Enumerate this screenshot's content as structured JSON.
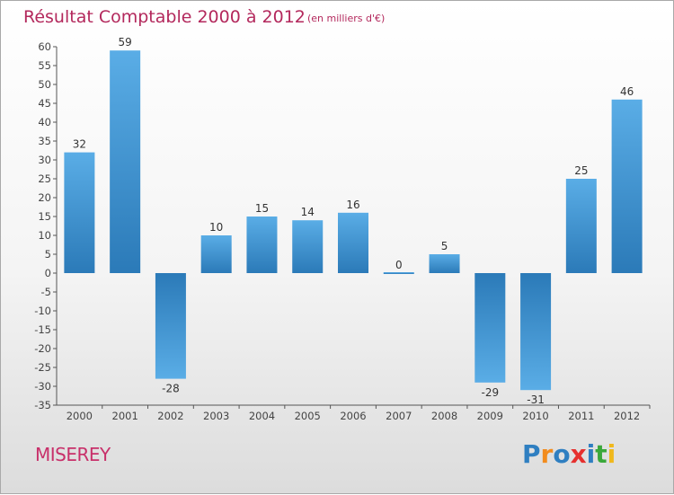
{
  "chart_data": {
    "type": "bar",
    "title": "Résultat Comptable 2000 à 2012",
    "subtitle": "(en milliers d'€)",
    "categories": [
      "2000",
      "2001",
      "2002",
      "2003",
      "2004",
      "2005",
      "2006",
      "2007",
      "2008",
      "2009",
      "2010",
      "2011",
      "2012"
    ],
    "values": [
      32,
      59,
      -28,
      10,
      15,
      14,
      16,
      0,
      5,
      -29,
      -31,
      25,
      46
    ],
    "ylim": [
      -35,
      60
    ],
    "yticks": [
      60,
      55,
      50,
      45,
      40,
      35,
      30,
      25,
      20,
      15,
      10,
      5,
      0,
      -5,
      -10,
      -15,
      -20,
      -25,
      -30,
      -35
    ],
    "grid": false,
    "xlabel": "",
    "ylabel": "",
    "colors": {
      "bar_light": "#5aade6",
      "bar_dark": "#2b7ab8",
      "title": "#b3285c"
    }
  },
  "commune": "MISEREY",
  "logo": {
    "letters": [
      "P",
      "r",
      "o",
      "x",
      "i",
      "t",
      "i"
    ],
    "colors": [
      "#2f7fc1",
      "#f28c1e",
      "#2f7fc1",
      "#e6302e",
      "#2f7fc1",
      "#3aa83a",
      "#f0b81c"
    ]
  }
}
